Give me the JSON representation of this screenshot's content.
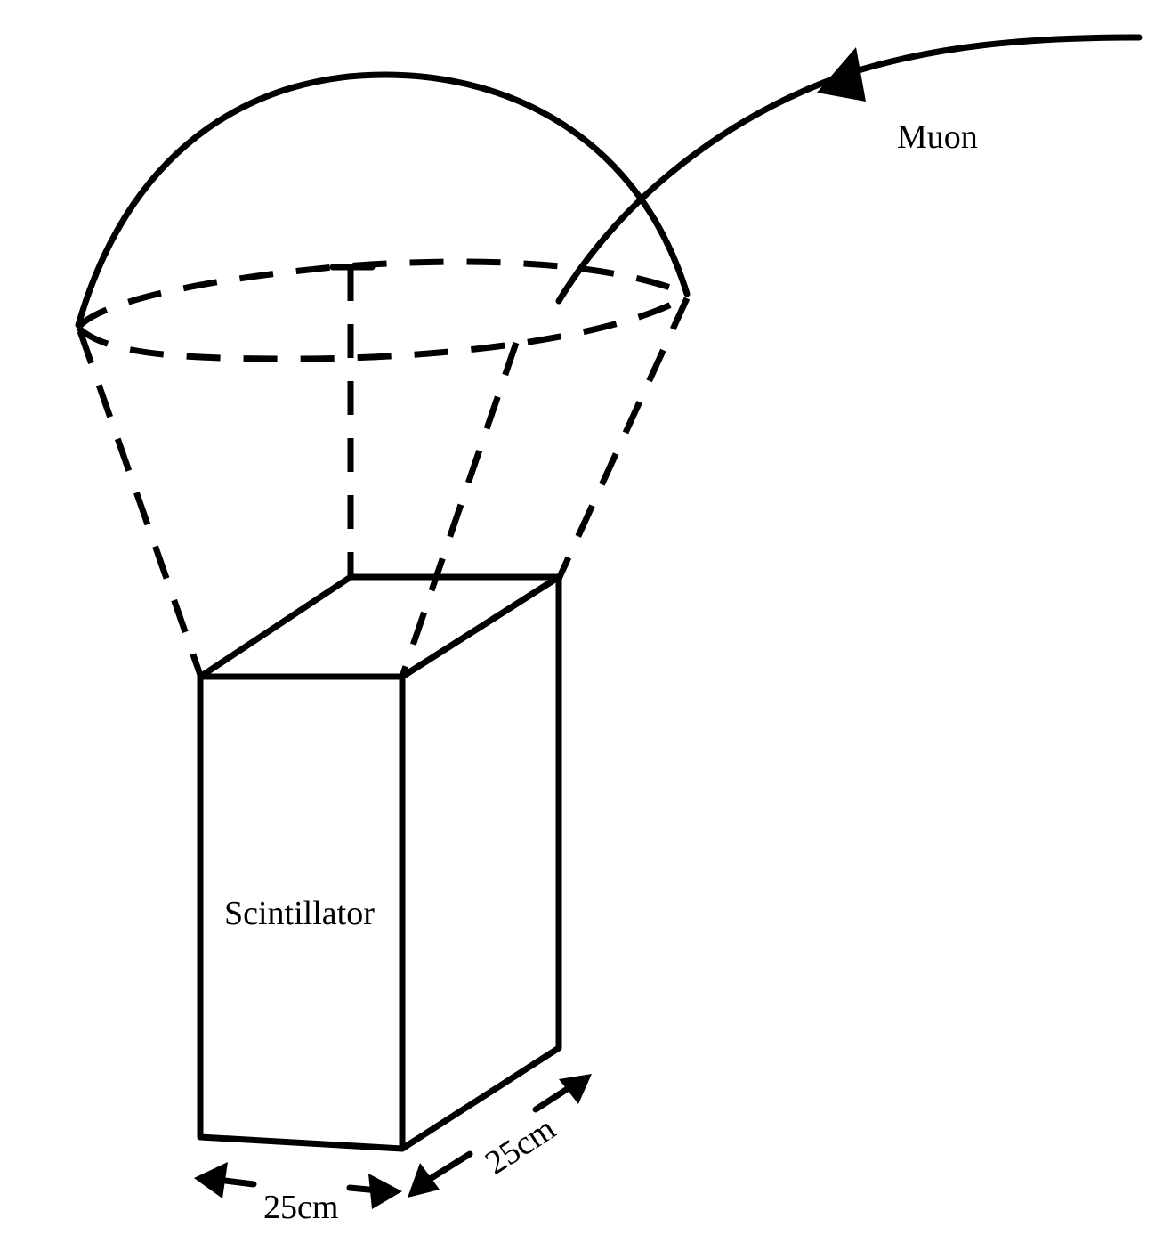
{
  "colors": {
    "ink": "#000000",
    "background": "#ffffff"
  },
  "labels": {
    "particle": "Muon",
    "detector": "Scintillator",
    "width_dimension": "25cm",
    "depth_dimension": "25cm"
  }
}
